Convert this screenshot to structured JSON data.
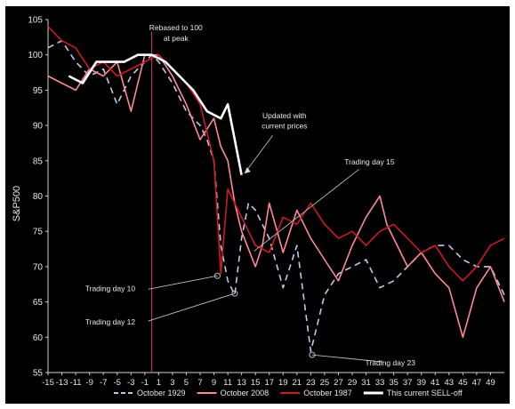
{
  "chart_data": {
    "type": "line",
    "ylabel": "S&P500",
    "xlabel": "",
    "ylim": [
      55,
      105
    ],
    "xlim": [
      -15,
      51
    ],
    "yticks": [
      55,
      60,
      65,
      70,
      75,
      80,
      85,
      90,
      95,
      100,
      105
    ],
    "xticks": [
      -15,
      -13,
      -11,
      -9,
      -7,
      -5,
      -3,
      -1,
      1,
      3,
      5,
      7,
      9,
      11,
      13,
      15,
      17,
      19,
      21,
      23,
      25,
      27,
      29,
      31,
      33,
      35,
      37,
      39,
      41,
      43,
      45,
      47,
      49
    ],
    "grid": false,
    "legend_position": "bottom",
    "peak_x": 0,
    "series": [
      {
        "name": "October 1929",
        "color": "#c9c3e6",
        "dash": true,
        "x": [
          -15,
          -13,
          -11,
          -9,
          -7,
          -5,
          -3,
          -1,
          0,
          1,
          3,
          5,
          7,
          8,
          9,
          10,
          11,
          12,
          13,
          14,
          15,
          17,
          19,
          21,
          23,
          25,
          27,
          29,
          31,
          33,
          35,
          37,
          39,
          41,
          43,
          45,
          47,
          49,
          51
        ],
        "y": [
          101,
          102,
          99,
          97,
          98,
          93,
          97,
          99,
          100,
          99,
          96,
          92,
          90,
          88,
          85,
          73,
          68,
          66,
          74,
          79,
          78,
          74,
          67,
          73,
          58,
          66,
          69,
          70,
          71,
          67,
          68,
          70,
          72,
          73,
          73,
          71,
          70,
          70,
          66
        ]
      },
      {
        "name": "October 2008",
        "color": "#ff8896",
        "dash": false,
        "x": [
          -15,
          -13,
          -11,
          -9,
          -7,
          -5,
          -3,
          -1,
          1,
          3,
          5,
          7,
          9,
          10,
          11,
          12,
          13,
          15,
          16,
          17,
          19,
          21,
          23,
          25,
          27,
          29,
          31,
          33,
          34,
          35,
          37,
          39,
          41,
          43,
          45,
          47,
          49,
          51
        ],
        "y": [
          97,
          96,
          95,
          98,
          97,
          99,
          92,
          100,
          100,
          97,
          93,
          88,
          91,
          87,
          85,
          79,
          75,
          70,
          73,
          79,
          72,
          78,
          74,
          71,
          68,
          73,
          77,
          80,
          76,
          74,
          70,
          72,
          69,
          67,
          60,
          67,
          70,
          65
        ]
      },
      {
        "name": "October 1987",
        "color": "#d01a22",
        "dash": false,
        "x": [
          -15,
          -13,
          -11,
          -9,
          -7,
          -5,
          -3,
          -1,
          1,
          3,
          5,
          7,
          9,
          10,
          11,
          13,
          15,
          17,
          19,
          21,
          23,
          25,
          27,
          29,
          31,
          33,
          35,
          37,
          39,
          41,
          43,
          45,
          47,
          49,
          51
        ],
        "y": [
          104,
          102,
          101,
          98,
          99,
          97,
          98,
          99,
          100,
          98,
          96,
          93,
          85,
          69,
          81,
          77,
          73,
          72,
          77,
          76,
          79,
          76,
          74,
          75,
          73,
          75,
          76,
          74,
          72,
          73,
          70,
          68,
          70,
          73,
          74
        ]
      },
      {
        "name": "This current SELL-off",
        "color": "#ffffff",
        "dash": false,
        "x": [
          -12,
          -10,
          -8,
          -6,
          -4,
          -2,
          0,
          2,
          4,
          6,
          8,
          10,
          11,
          12,
          13
        ],
        "y": [
          97,
          96,
          99,
          99,
          99,
          100,
          100,
          99,
          97,
          95,
          92,
          91,
          93,
          88,
          83
        ]
      }
    ],
    "annotations": [
      {
        "text": "Rebased to 100",
        "x": 3.5,
        "y": 103.5,
        "color": "#e8e8e8"
      },
      {
        "text": "at peak",
        "x": 3.5,
        "y": 102,
        "color": "#e8e8e8"
      },
      {
        "text": "Updated with",
        "x": 19.2,
        "y": 91,
        "color": "#e8e8e8"
      },
      {
        "text": "current prices",
        "x": 19.2,
        "y": 89.6,
        "color": "#e8e8e8"
      },
      {
        "text": "Trading day 15",
        "x": 31.5,
        "y": 84.5,
        "color": "#e8e8e8"
      },
      {
        "text": "Trading day 10",
        "x": -6,
        "y": 66.5,
        "color": "#e8e8e8"
      },
      {
        "text": "Trading day 12",
        "x": -6,
        "y": 61.8,
        "color": "#e8e8e8"
      },
      {
        "text": "Trading day 23",
        "x": 34.5,
        "y": 56,
        "color": "#e8e8e8"
      }
    ]
  }
}
